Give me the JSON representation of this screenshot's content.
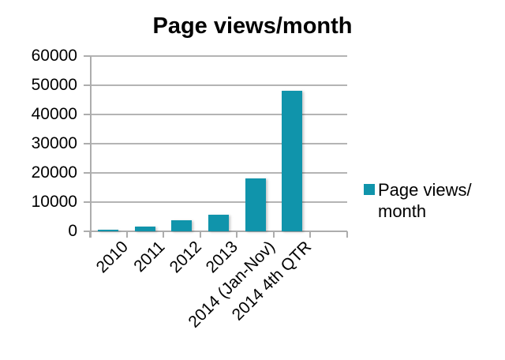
{
  "chart_data": {
    "type": "bar",
    "title": "Page views/month",
    "categories": [
      "2010",
      "2011",
      "2012",
      "2013",
      "2014 (Jan-Nov)",
      "2014 4th QTR"
    ],
    "values": [
      500,
      1600,
      3800,
      5700,
      18000,
      48000
    ],
    "series_name": "Page views/month",
    "xlabel": "",
    "ylabel": "",
    "ylim": [
      0,
      60000
    ],
    "y_ticks": [
      0,
      10000,
      20000,
      30000,
      40000,
      50000,
      60000
    ],
    "x_slots": 7,
    "grid": "horizontal",
    "legend_position": "right",
    "bar_color": "#1094ab",
    "axis_color": "#adadad",
    "gridline_color": "#b4b4b4"
  },
  "legend": {
    "swatch_color": "#1094ab",
    "label_line1": "Page views/",
    "label_line2": "month"
  }
}
